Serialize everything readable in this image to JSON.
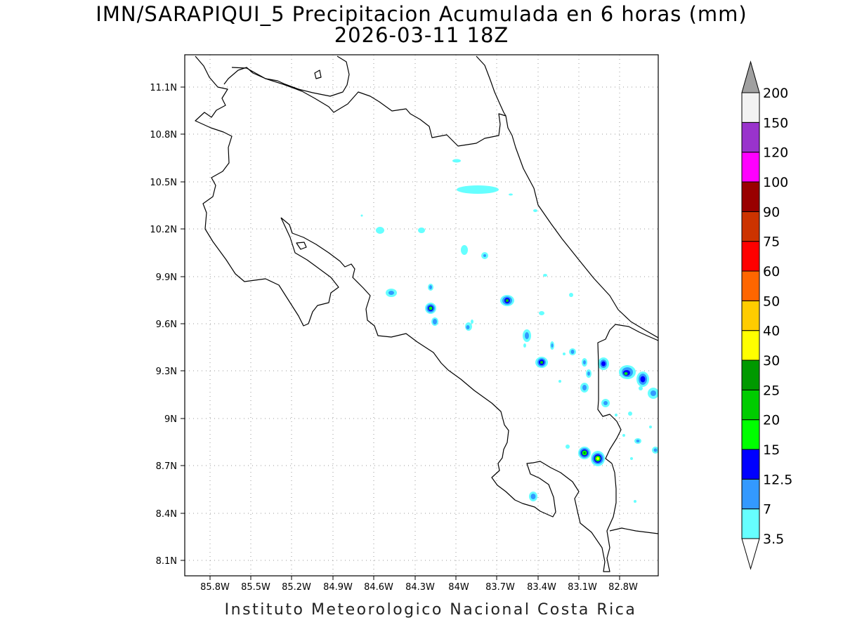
{
  "title_line1": "IMN/SARAPIQUI_5 Precipitacion Acumulada en 6 horas (mm)",
  "title_line2": "2026-03-11 18Z",
  "footer": "Instituto Meteorologico Nacional Costa Rica",
  "map": {
    "lon_ticks": [
      "85.8W",
      "85.5W",
      "85.2W",
      "84.9W",
      "84.6W",
      "84.3W",
      "84W",
      "83.7W",
      "83.4W",
      "83.1W",
      "82.8W"
    ],
    "lat_ticks": [
      "11.1N",
      "10.8N",
      "10.5N",
      "10.2N",
      "9.9N",
      "9.6N",
      "9.3N",
      "9N",
      "8.7N",
      "8.4N",
      "8.1N"
    ],
    "grid": "dotted",
    "coastline_color": "#000000"
  },
  "colorbar": {
    "top_value": "200",
    "levels": [
      {
        "label": "3.5",
        "color": "#66ffff"
      },
      {
        "label": "7",
        "color": "#3399ff"
      },
      {
        "label": "12.5",
        "color": "#0000ff"
      },
      {
        "label": "15",
        "color": "#00ff00"
      },
      {
        "label": "20",
        "color": "#00cc00"
      },
      {
        "label": "25",
        "color": "#009900"
      },
      {
        "label": "30",
        "color": "#ffff00"
      },
      {
        "label": "40",
        "color": "#ffcc00"
      },
      {
        "label": "50",
        "color": "#ff6600"
      },
      {
        "label": "60",
        "color": "#ff0000"
      },
      {
        "label": "75",
        "color": "#cc3300"
      },
      {
        "label": "90",
        "color": "#990000"
      },
      {
        "label": "100",
        "color": "#ff00ff"
      },
      {
        "label": "120",
        "color": "#9933cc"
      },
      {
        "label": "150",
        "color": "#f2f2f2"
      }
    ],
    "under_color": "#ffffff",
    "over_color": "#a0a0a0"
  }
}
